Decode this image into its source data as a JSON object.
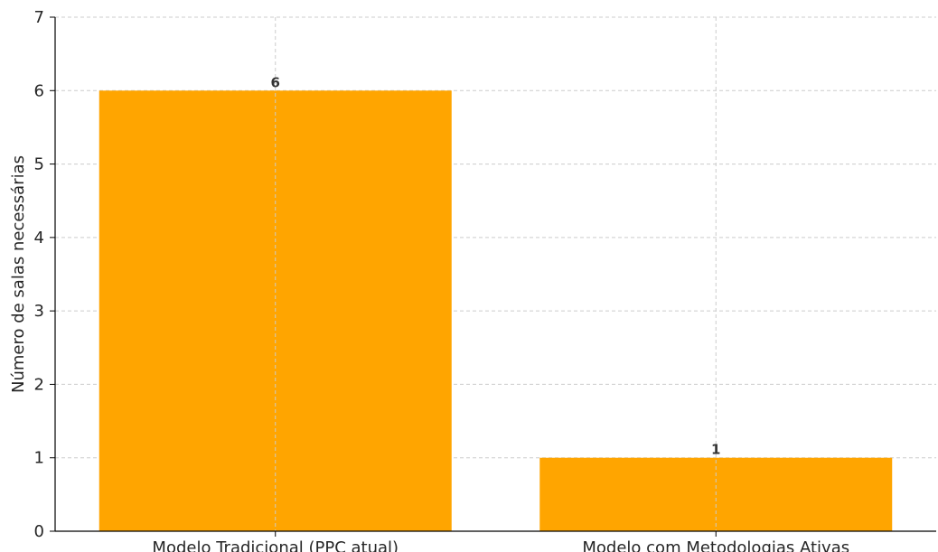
{
  "chart_data": {
    "type": "bar",
    "title": "",
    "xlabel": "",
    "ylabel": "Número de salas necessárias",
    "categories": [
      "Modelo Tradicional (PPC atual)",
      "Modelo com Metodologias Ativas"
    ],
    "values": [
      6,
      1
    ],
    "data_labels": [
      "6",
      "1"
    ],
    "ylim": [
      0,
      7
    ],
    "yticks": [
      "0",
      "1",
      "2",
      "3",
      "4",
      "5",
      "6",
      "7"
    ],
    "bar_color": "#FFA500",
    "grid": true,
    "legend": "none"
  }
}
